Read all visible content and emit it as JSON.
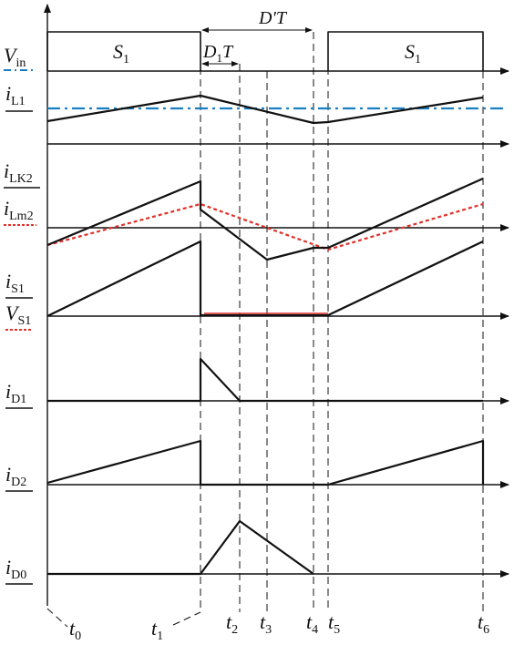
{
  "labels": {
    "vin": "V",
    "vin_sub": "in",
    "il1": "i",
    "il1_sub": "L1",
    "ilk2": "i",
    "ilk2_sub": "LK2",
    "ilm2": "i",
    "ilm2_sub": "Lm2",
    "is1": "i",
    "is1_sub": "S1",
    "vs1": "V",
    "vs1_sub": "S1",
    "id1": "i",
    "id1_sub": "D1",
    "id2": "i",
    "id2_sub": "D2",
    "id0": "i",
    "id0_sub": "D0"
  },
  "switch": {
    "s1_left": "S",
    "s1_left_sub": "1",
    "s1_right": "S",
    "s1_right_sub": "1",
    "d1t": "D",
    "d1t_sub": "1",
    "d1t_t": "T",
    "dpt": "D′T"
  },
  "times": [
    {
      "id": "t0",
      "t": "t",
      "sub": "0"
    },
    {
      "id": "t1",
      "t": "t",
      "sub": "1"
    },
    {
      "id": "t2",
      "t": "t",
      "sub": "2"
    },
    {
      "id": "t3",
      "t": "t",
      "sub": "3"
    },
    {
      "id": "t4",
      "t": "t",
      "sub": "4"
    },
    {
      "id": "t5",
      "t": "t",
      "sub": "5"
    },
    {
      "id": "t6",
      "t": "t",
      "sub": "6"
    }
  ],
  "colors": {
    "waveform": "#111111",
    "vin_line": "#1a7fc1",
    "ilm2_line": "#e0302a",
    "vs1_line": "#e0302a"
  }
}
